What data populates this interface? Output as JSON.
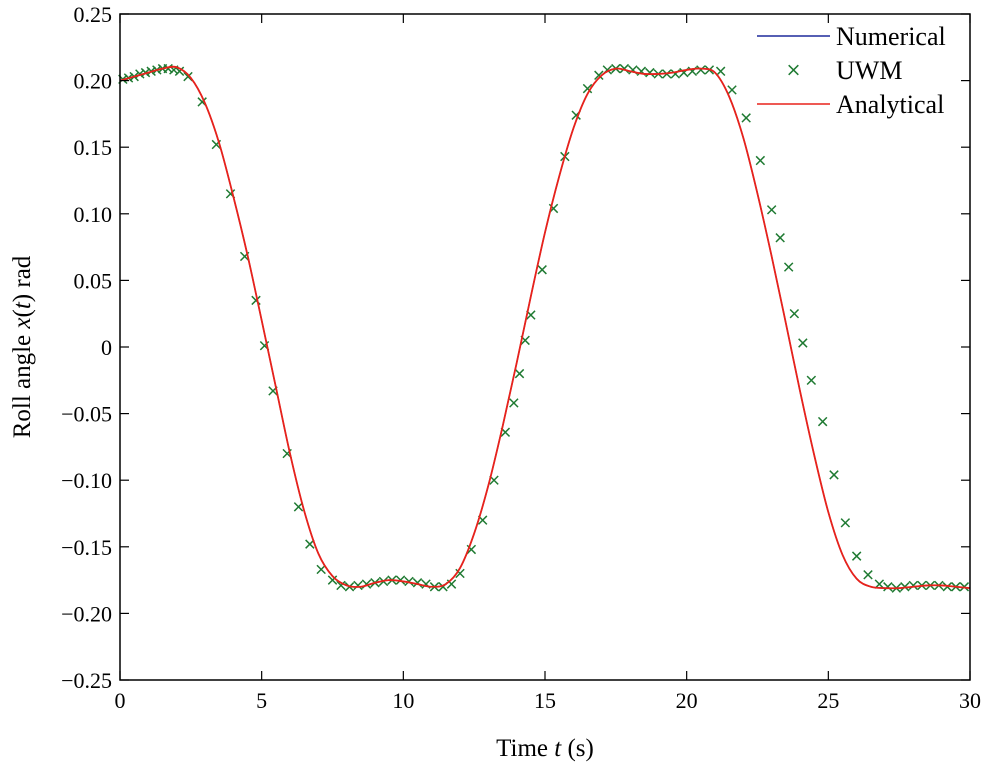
{
  "chart_data": {
    "type": "line",
    "title": "",
    "xlabel": {
      "prefix": "Time ",
      "var": "t",
      "suffix": " (s)"
    },
    "ylabel": {
      "prefix": "Roll angle ",
      "var": "x",
      "open": "(",
      "arg": "t",
      "close": ")",
      "suffix": " rad"
    },
    "xlim": [
      0,
      30
    ],
    "ylim": [
      -0.25,
      0.25
    ],
    "xticks": [
      0,
      5,
      10,
      15,
      20,
      25,
      30
    ],
    "xtick_labels": [
      "0",
      "5",
      "10",
      "15",
      "20",
      "25",
      "30"
    ],
    "yticks": [
      0.25,
      0.2,
      0.15,
      0.1,
      0.05,
      0,
      -0.05,
      -0.1,
      -0.15,
      -0.2,
      -0.25
    ],
    "ytick_labels": [
      "0.25",
      "0.20",
      "0.15",
      "0.10",
      "0.05",
      "0",
      "−0.05",
      "−0.10",
      "−0.15",
      "−0.20",
      "−0.25"
    ],
    "grid": false,
    "legend_position": "top-right",
    "colors": {
      "numerical": "#1f2a9c",
      "uwm": "#1f7a32",
      "analytical": "#e8221b"
    },
    "series": [
      {
        "name": "Numerical",
        "style": "line",
        "x": [
          0,
          0.5,
          1,
          1.5,
          2,
          2.5,
          3,
          3.5,
          4,
          4.5,
          5,
          5.5,
          6,
          6.5,
          7,
          7.5,
          8,
          8.5,
          9,
          9.5,
          10,
          10.5,
          11,
          11.5,
          12,
          12.5,
          13,
          13.5,
          14,
          14.5,
          15,
          15.5,
          16,
          16.5,
          17,
          17.5,
          18,
          18.5,
          19,
          19.5,
          20,
          20.5,
          21,
          21.5,
          22,
          22.5,
          23,
          23.5,
          24,
          24.5,
          25,
          25.5,
          26,
          26.5,
          27,
          27.5,
          28,
          28.5,
          29,
          29.5,
          30
        ],
        "y": [
          0.2,
          0.203,
          0.206,
          0.209,
          0.21,
          0.202,
          0.183,
          0.153,
          0.113,
          0.069,
          0.02,
          -0.03,
          -0.08,
          -0.123,
          -0.155,
          -0.172,
          -0.179,
          -0.18,
          -0.177,
          -0.175,
          -0.176,
          -0.178,
          -0.18,
          -0.178,
          -0.166,
          -0.14,
          -0.104,
          -0.06,
          -0.012,
          0.038,
          0.086,
          0.128,
          0.164,
          0.19,
          0.204,
          0.209,
          0.207,
          0.205,
          0.205,
          0.206,
          0.208,
          0.209,
          0.206,
          0.188,
          0.157,
          0.115,
          0.068,
          0.018,
          -0.033,
          -0.081,
          -0.124,
          -0.156,
          -0.174,
          -0.18,
          -0.181,
          -0.181,
          -0.18,
          -0.179,
          -0.179,
          -0.18,
          -0.181
        ]
      },
      {
        "name": "UWM",
        "style": "markers",
        "marker": "x",
        "x": [
          0.1,
          0.3,
          0.5,
          0.7,
          0.9,
          1.1,
          1.3,
          1.5,
          1.7,
          1.9,
          2.1,
          2.4,
          2.9,
          3.4,
          3.9,
          4.4,
          4.8,
          5.1,
          5.4,
          5.9,
          6.3,
          6.7,
          7.1,
          7.5,
          7.8,
          8.1,
          8.4,
          8.7,
          9.0,
          9.3,
          9.6,
          9.9,
          10.2,
          10.5,
          10.8,
          11.1,
          11.4,
          11.7,
          12.0,
          12.4,
          12.8,
          13.2,
          13.6,
          13.9,
          14.1,
          14.3,
          14.5,
          14.9,
          15.3,
          15.7,
          16.1,
          16.5,
          16.9,
          17.2,
          17.5,
          17.8,
          18.1,
          18.4,
          18.7,
          19.0,
          19.3,
          19.6,
          19.9,
          20.2,
          20.5,
          20.8,
          21.2,
          21.6,
          22.1,
          22.6,
          23.0,
          23.3,
          23.6,
          23.8,
          24.1,
          24.4,
          24.8,
          25.2,
          25.6,
          26.0,
          26.4,
          26.8,
          27.1,
          27.4,
          27.7,
          28.0,
          28.3,
          28.6,
          28.9,
          29.2,
          29.5,
          29.8
        ],
        "y": [
          0.201,
          0.202,
          0.203,
          0.205,
          0.206,
          0.207,
          0.208,
          0.209,
          0.209,
          0.208,
          0.207,
          0.203,
          0.184,
          0.152,
          0.115,
          0.068,
          0.035,
          0.001,
          -0.033,
          -0.08,
          -0.12,
          -0.148,
          -0.167,
          -0.175,
          -0.179,
          -0.18,
          -0.179,
          -0.178,
          -0.177,
          -0.176,
          -0.175,
          -0.175,
          -0.176,
          -0.177,
          -0.178,
          -0.18,
          -0.18,
          -0.178,
          -0.17,
          -0.152,
          -0.13,
          -0.1,
          -0.064,
          -0.042,
          -0.02,
          0.005,
          0.024,
          0.058,
          0.104,
          0.143,
          0.174,
          0.194,
          0.204,
          0.208,
          0.209,
          0.209,
          0.208,
          0.207,
          0.206,
          0.205,
          0.205,
          0.205,
          0.206,
          0.207,
          0.208,
          0.208,
          0.207,
          0.193,
          0.172,
          0.14,
          0.103,
          0.082,
          0.06,
          0.025,
          0.003,
          -0.025,
          -0.056,
          -0.096,
          -0.132,
          -0.157,
          -0.171,
          -0.178,
          -0.18,
          -0.181,
          -0.18,
          -0.179,
          -0.179,
          -0.179,
          -0.179,
          -0.18,
          -0.18,
          -0.18
        ]
      },
      {
        "name": "Analytical",
        "style": "line",
        "x": [
          0,
          0.5,
          1,
          1.5,
          2,
          2.5,
          3,
          3.5,
          4,
          4.5,
          5,
          5.5,
          6,
          6.5,
          7,
          7.5,
          8,
          8.5,
          9,
          9.5,
          10,
          10.5,
          11,
          11.5,
          12,
          12.5,
          13,
          13.5,
          14,
          14.5,
          15,
          15.5,
          16,
          16.5,
          17,
          17.5,
          18,
          18.5,
          19,
          19.5,
          20,
          20.5,
          21,
          21.5,
          22,
          22.5,
          23,
          23.5,
          24,
          24.5,
          25,
          25.5,
          26,
          26.5,
          27,
          27.5,
          28,
          28.5,
          29,
          29.5,
          30
        ],
        "y": [
          0.2,
          0.203,
          0.206,
          0.209,
          0.21,
          0.202,
          0.183,
          0.153,
          0.113,
          0.069,
          0.02,
          -0.03,
          -0.08,
          -0.123,
          -0.155,
          -0.172,
          -0.179,
          -0.18,
          -0.177,
          -0.175,
          -0.176,
          -0.178,
          -0.18,
          -0.178,
          -0.166,
          -0.14,
          -0.104,
          -0.06,
          -0.012,
          0.038,
          0.086,
          0.128,
          0.164,
          0.19,
          0.204,
          0.209,
          0.207,
          0.205,
          0.205,
          0.206,
          0.208,
          0.209,
          0.206,
          0.188,
          0.157,
          0.115,
          0.068,
          0.018,
          -0.033,
          -0.081,
          -0.124,
          -0.156,
          -0.174,
          -0.18,
          -0.181,
          -0.181,
          -0.18,
          -0.179,
          -0.179,
          -0.18,
          -0.181
        ]
      }
    ]
  }
}
